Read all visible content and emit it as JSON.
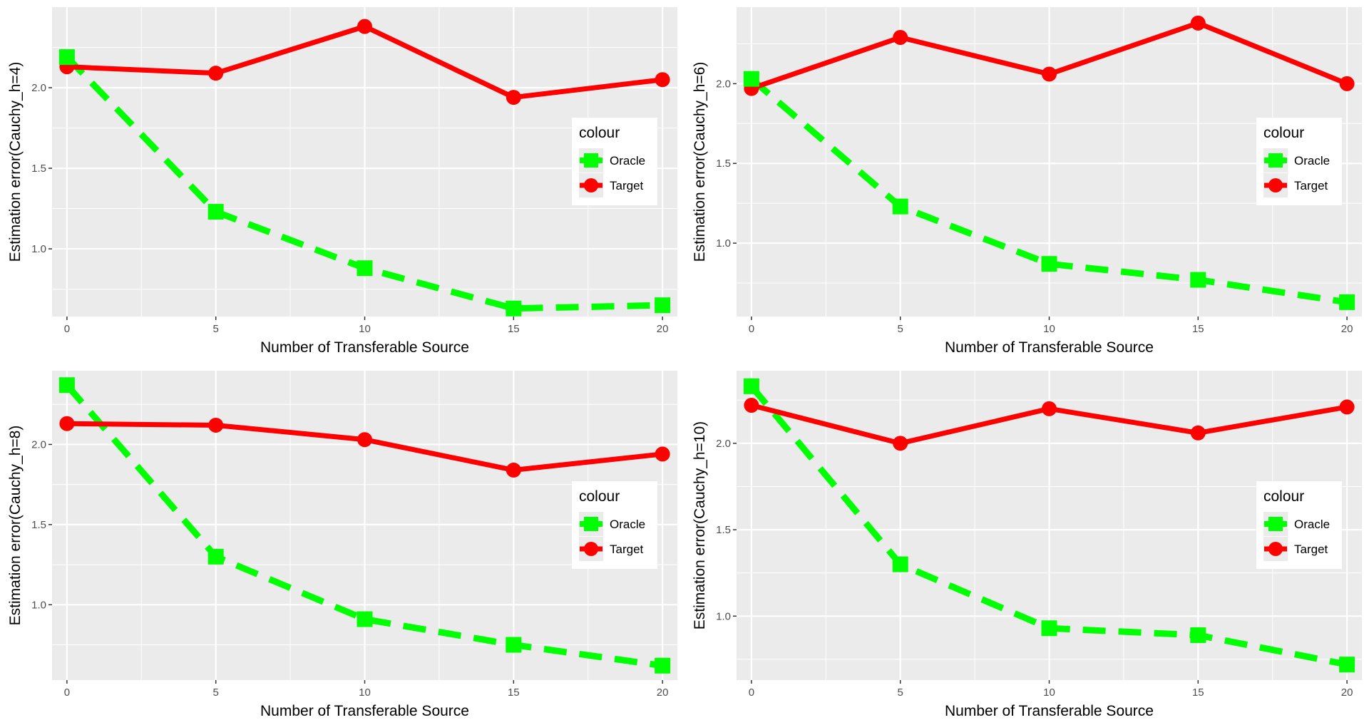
{
  "chart_data": [
    {
      "type": "line",
      "xlabel": "Number of Transferable Source",
      "ylabel": "Estimation error(Cauchy_h=4)",
      "x": [
        0,
        5,
        10,
        15,
        20
      ],
      "xlim": [
        -0.5,
        20.5
      ],
      "ylim": [
        0.58,
        2.5
      ],
      "y_ticks": [
        1.0,
        1.5,
        2.0
      ],
      "y_tick_labels": [
        "1.0",
        "1.5",
        "2.0"
      ],
      "x_ticks": [
        0,
        5,
        10,
        15,
        20
      ],
      "x_tick_labels": [
        "0",
        "5",
        "10",
        "15",
        "20"
      ],
      "series": [
        {
          "name": "Oracle",
          "values": [
            2.19,
            1.23,
            0.88,
            0.63,
            0.65
          ]
        },
        {
          "name": "Target",
          "values": [
            2.13,
            2.09,
            2.38,
            1.94,
            2.05
          ]
        }
      ],
      "legend": {
        "title": "colour",
        "placement": "right",
        "labels": [
          "Oracle",
          "Target"
        ]
      }
    },
    {
      "type": "line",
      "xlabel": "Number of Transferable Source",
      "ylabel": "Estimation error(Cauchy_h=6)",
      "x": [
        0,
        5,
        10,
        15,
        20
      ],
      "xlim": [
        -0.5,
        20.5
      ],
      "ylim": [
        0.54,
        2.48
      ],
      "y_ticks": [
        1.0,
        1.5,
        2.0
      ],
      "y_tick_labels": [
        "1.0",
        "1.5",
        "2.0"
      ],
      "x_ticks": [
        0,
        5,
        10,
        15,
        20
      ],
      "x_tick_labels": [
        "0",
        "5",
        "10",
        "15",
        "20"
      ],
      "series": [
        {
          "name": "Oracle",
          "values": [
            2.03,
            1.23,
            0.87,
            0.77,
            0.63
          ]
        },
        {
          "name": "Target",
          "values": [
            1.97,
            2.29,
            2.06,
            2.38,
            2.0
          ]
        }
      ],
      "legend": {
        "title": "colour",
        "placement": "right",
        "labels": [
          "Oracle",
          "Target"
        ]
      }
    },
    {
      "type": "line",
      "xlabel": "Number of Transferable Source",
      "ylabel": "Estimation error(Cauchy_h=8)",
      "x": [
        0,
        5,
        10,
        15,
        20
      ],
      "xlim": [
        -0.5,
        20.5
      ],
      "ylim": [
        0.53,
        2.46
      ],
      "y_ticks": [
        1.0,
        1.5,
        2.0
      ],
      "y_tick_labels": [
        "1.0",
        "1.5",
        "2.0"
      ],
      "x_ticks": [
        0,
        5,
        10,
        15,
        20
      ],
      "x_tick_labels": [
        "0",
        "5",
        "10",
        "15",
        "20"
      ],
      "series": [
        {
          "name": "Oracle",
          "values": [
            2.37,
            1.3,
            0.91,
            0.75,
            0.62
          ]
        },
        {
          "name": "Target",
          "values": [
            2.13,
            2.12,
            2.03,
            1.84,
            1.94
          ]
        }
      ],
      "legend": {
        "title": "colour",
        "placement": "right",
        "labels": [
          "Oracle",
          "Target"
        ]
      }
    },
    {
      "type": "line",
      "xlabel": "Number of Transferable Source",
      "ylabel": "Estimation error(Cauchy_h=10)",
      "x": [
        0,
        5,
        10,
        15,
        20
      ],
      "xlim": [
        -0.5,
        20.5
      ],
      "ylim": [
        0.63,
        2.42
      ],
      "y_ticks": [
        1.0,
        1.5,
        2.0
      ],
      "y_tick_labels": [
        "1.0",
        "1.5",
        "2.0"
      ],
      "x_ticks": [
        0,
        5,
        10,
        15,
        20
      ],
      "x_tick_labels": [
        "0",
        "5",
        "10",
        "15",
        "20"
      ],
      "series": [
        {
          "name": "Oracle",
          "values": [
            2.33,
            1.3,
            0.93,
            0.89,
            0.72
          ]
        },
        {
          "name": "Target",
          "values": [
            2.22,
            2.0,
            2.2,
            2.06,
            2.21
          ]
        }
      ],
      "legend": {
        "title": "colour",
        "placement": "right",
        "labels": [
          "Oracle",
          "Target"
        ]
      }
    }
  ],
  "colors": {
    "Oracle": "#00ff00",
    "Target": "#ff0000",
    "panel_background": "#ebebeb",
    "grid": "#ffffff"
  }
}
